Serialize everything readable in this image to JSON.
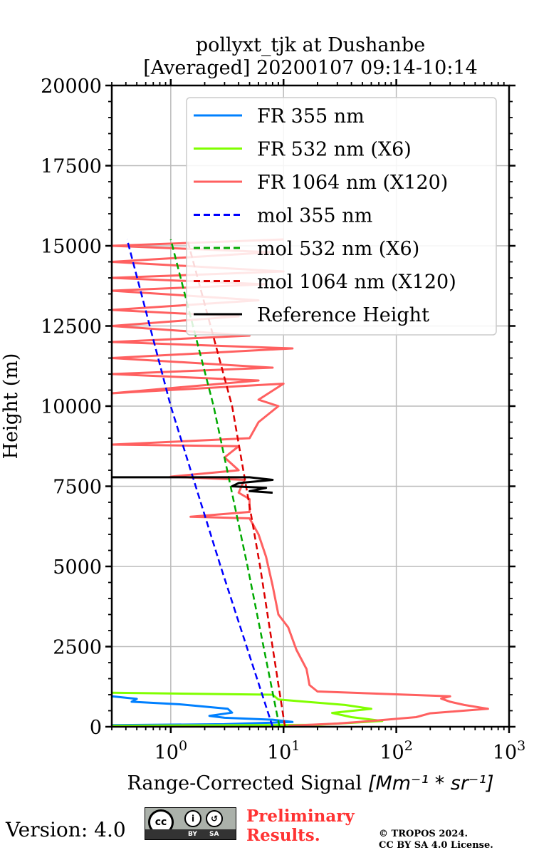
{
  "chart_data": {
    "type": "line",
    "title": [
      "pollyxt_tjk at Dushanbe",
      "[Averaged] 20200107 09:14-10:14"
    ],
    "xlabel": "Range-Corrected Signal [Mm^-1 * sr^-1]",
    "xlabel_main": "Range-Corrected Signal ",
    "xlabel_unit": "[Mm⁻¹ * sr⁻¹]",
    "ylabel": "Height (m)",
    "xscale": "log",
    "xlim": [
      0.3,
      1000
    ],
    "ylim": [
      0,
      20000
    ],
    "xticks": [
      1,
      10,
      100,
      1000
    ],
    "xtick_labels": [
      {
        "base": "10",
        "exp": "0"
      },
      {
        "base": "10",
        "exp": "1"
      },
      {
        "base": "10",
        "exp": "2"
      },
      {
        "base": "10",
        "exp": "3"
      }
    ],
    "yticks": [
      0,
      2500,
      5000,
      7500,
      10000,
      12500,
      15000,
      17500,
      20000
    ],
    "ytick_labels": [
      "0",
      "2500",
      "5000",
      "7500",
      "10000",
      "12500",
      "15000",
      "17500",
      "20000"
    ],
    "grid": true,
    "legend_position": "top-right",
    "series": [
      {
        "name": "FR 355 nm",
        "color": "#0080ff",
        "style": "solid",
        "points": [
          [
            0.3,
            50
          ],
          [
            3,
            80
          ],
          [
            12,
            150
          ],
          [
            8,
            220
          ],
          [
            3,
            280
          ],
          [
            2.2,
            340
          ],
          [
            3.5,
            440
          ],
          [
            3.2,
            560
          ],
          [
            1.2,
            700
          ],
          [
            0.45,
            780
          ],
          [
            0.5,
            870
          ],
          [
            0.3,
            950
          ]
        ]
      },
      {
        "name": "FR 532 nm (X6)",
        "color": "#80ff00",
        "style": "solid",
        "points": [
          [
            0.3,
            30
          ],
          [
            20,
            60
          ],
          [
            75,
            180
          ],
          [
            40,
            300
          ],
          [
            27,
            430
          ],
          [
            60,
            560
          ],
          [
            35,
            680
          ],
          [
            9,
            850
          ],
          [
            8,
            1000
          ],
          [
            0.3,
            1060
          ]
        ]
      },
      {
        "name": "FR 1064 nm (X120)",
        "color": "#ff6060",
        "style": "solid",
        "points": [
          [
            11,
            30
          ],
          [
            30,
            100
          ],
          [
            60,
            180
          ],
          [
            150,
            300
          ],
          [
            200,
            420
          ],
          [
            650,
            560
          ],
          [
            400,
            680
          ],
          [
            300,
            780
          ],
          [
            250,
            880
          ],
          [
            300,
            950
          ],
          [
            20,
            1100
          ],
          [
            17,
            1300
          ],
          [
            16,
            1800
          ],
          [
            13,
            2400
          ],
          [
            11,
            3100
          ],
          [
            9,
            3500
          ],
          [
            8,
            4400
          ],
          [
            7,
            5300
          ],
          [
            6,
            6000
          ],
          [
            5,
            6500
          ],
          [
            1.5,
            6550
          ],
          [
            5,
            6700
          ],
          [
            5,
            7100
          ],
          [
            4,
            7300
          ],
          [
            4.5,
            7700
          ],
          [
            1,
            7800
          ],
          [
            4,
            8000
          ],
          [
            3,
            8400
          ],
          [
            4,
            8750
          ],
          [
            0.3,
            8800
          ],
          [
            5,
            9000
          ],
          [
            6,
            9500
          ],
          [
            9,
            10000
          ],
          [
            6,
            10200
          ],
          [
            10,
            10700
          ],
          [
            0.3,
            10400
          ],
          [
            6,
            10800
          ],
          [
            0.3,
            11000
          ],
          [
            8,
            11200
          ],
          [
            0.3,
            11500
          ],
          [
            12,
            11800
          ],
          [
            0.3,
            12000
          ],
          [
            5,
            12200
          ],
          [
            0.3,
            12500
          ],
          [
            4,
            12800
          ],
          [
            0.3,
            13000
          ],
          [
            6,
            13300
          ],
          [
            0.3,
            13600
          ],
          [
            7,
            13800
          ],
          [
            0.3,
            14000
          ],
          [
            10,
            14200
          ],
          [
            0.3,
            14500
          ],
          [
            8,
            14800
          ],
          [
            0.3,
            15000
          ],
          [
            10,
            15200
          ]
        ]
      },
      {
        "name": "mol 355 nm",
        "color": "#0000ff",
        "style": "dashed",
        "points": [
          [
            8,
            0
          ],
          [
            2.77,
            5000
          ],
          [
            1.0,
            10000
          ],
          [
            0.41,
            15200
          ]
        ]
      },
      {
        "name": "mol 532 nm (X6)",
        "color": "#00aa00",
        "style": "dashed",
        "points": [
          [
            9.2,
            0
          ],
          [
            4.8,
            5000
          ],
          [
            2.4,
            10000
          ],
          [
            1.0,
            15200
          ]
        ]
      },
      {
        "name": "mol 1064 nm (X120)",
        "color": "#dd0000",
        "style": "dashed",
        "points": [
          [
            10.3,
            0
          ],
          [
            6.2,
            5000
          ],
          [
            3.5,
            10000
          ],
          [
            1.4,
            15200
          ]
        ]
      },
      {
        "name": "Reference Height",
        "color": "#000000",
        "style": "solid",
        "points": [
          [
            0.3,
            7780
          ],
          [
            5,
            7780
          ],
          [
            8,
            7700
          ],
          [
            4,
            7600
          ],
          [
            3.5,
            7500
          ],
          [
            7,
            7450
          ],
          [
            5,
            7350
          ],
          [
            8,
            7300
          ]
        ]
      }
    ]
  },
  "footer": {
    "version": "Version: 4.0",
    "badge": {
      "cc": "cc",
      "by": "BY",
      "sa": "SA"
    },
    "preliminary_line1": "Preliminary",
    "preliminary_line2": "Results.",
    "copyright": "© TROPOS 2024.",
    "license": "CC BY SA 4.0 License."
  }
}
